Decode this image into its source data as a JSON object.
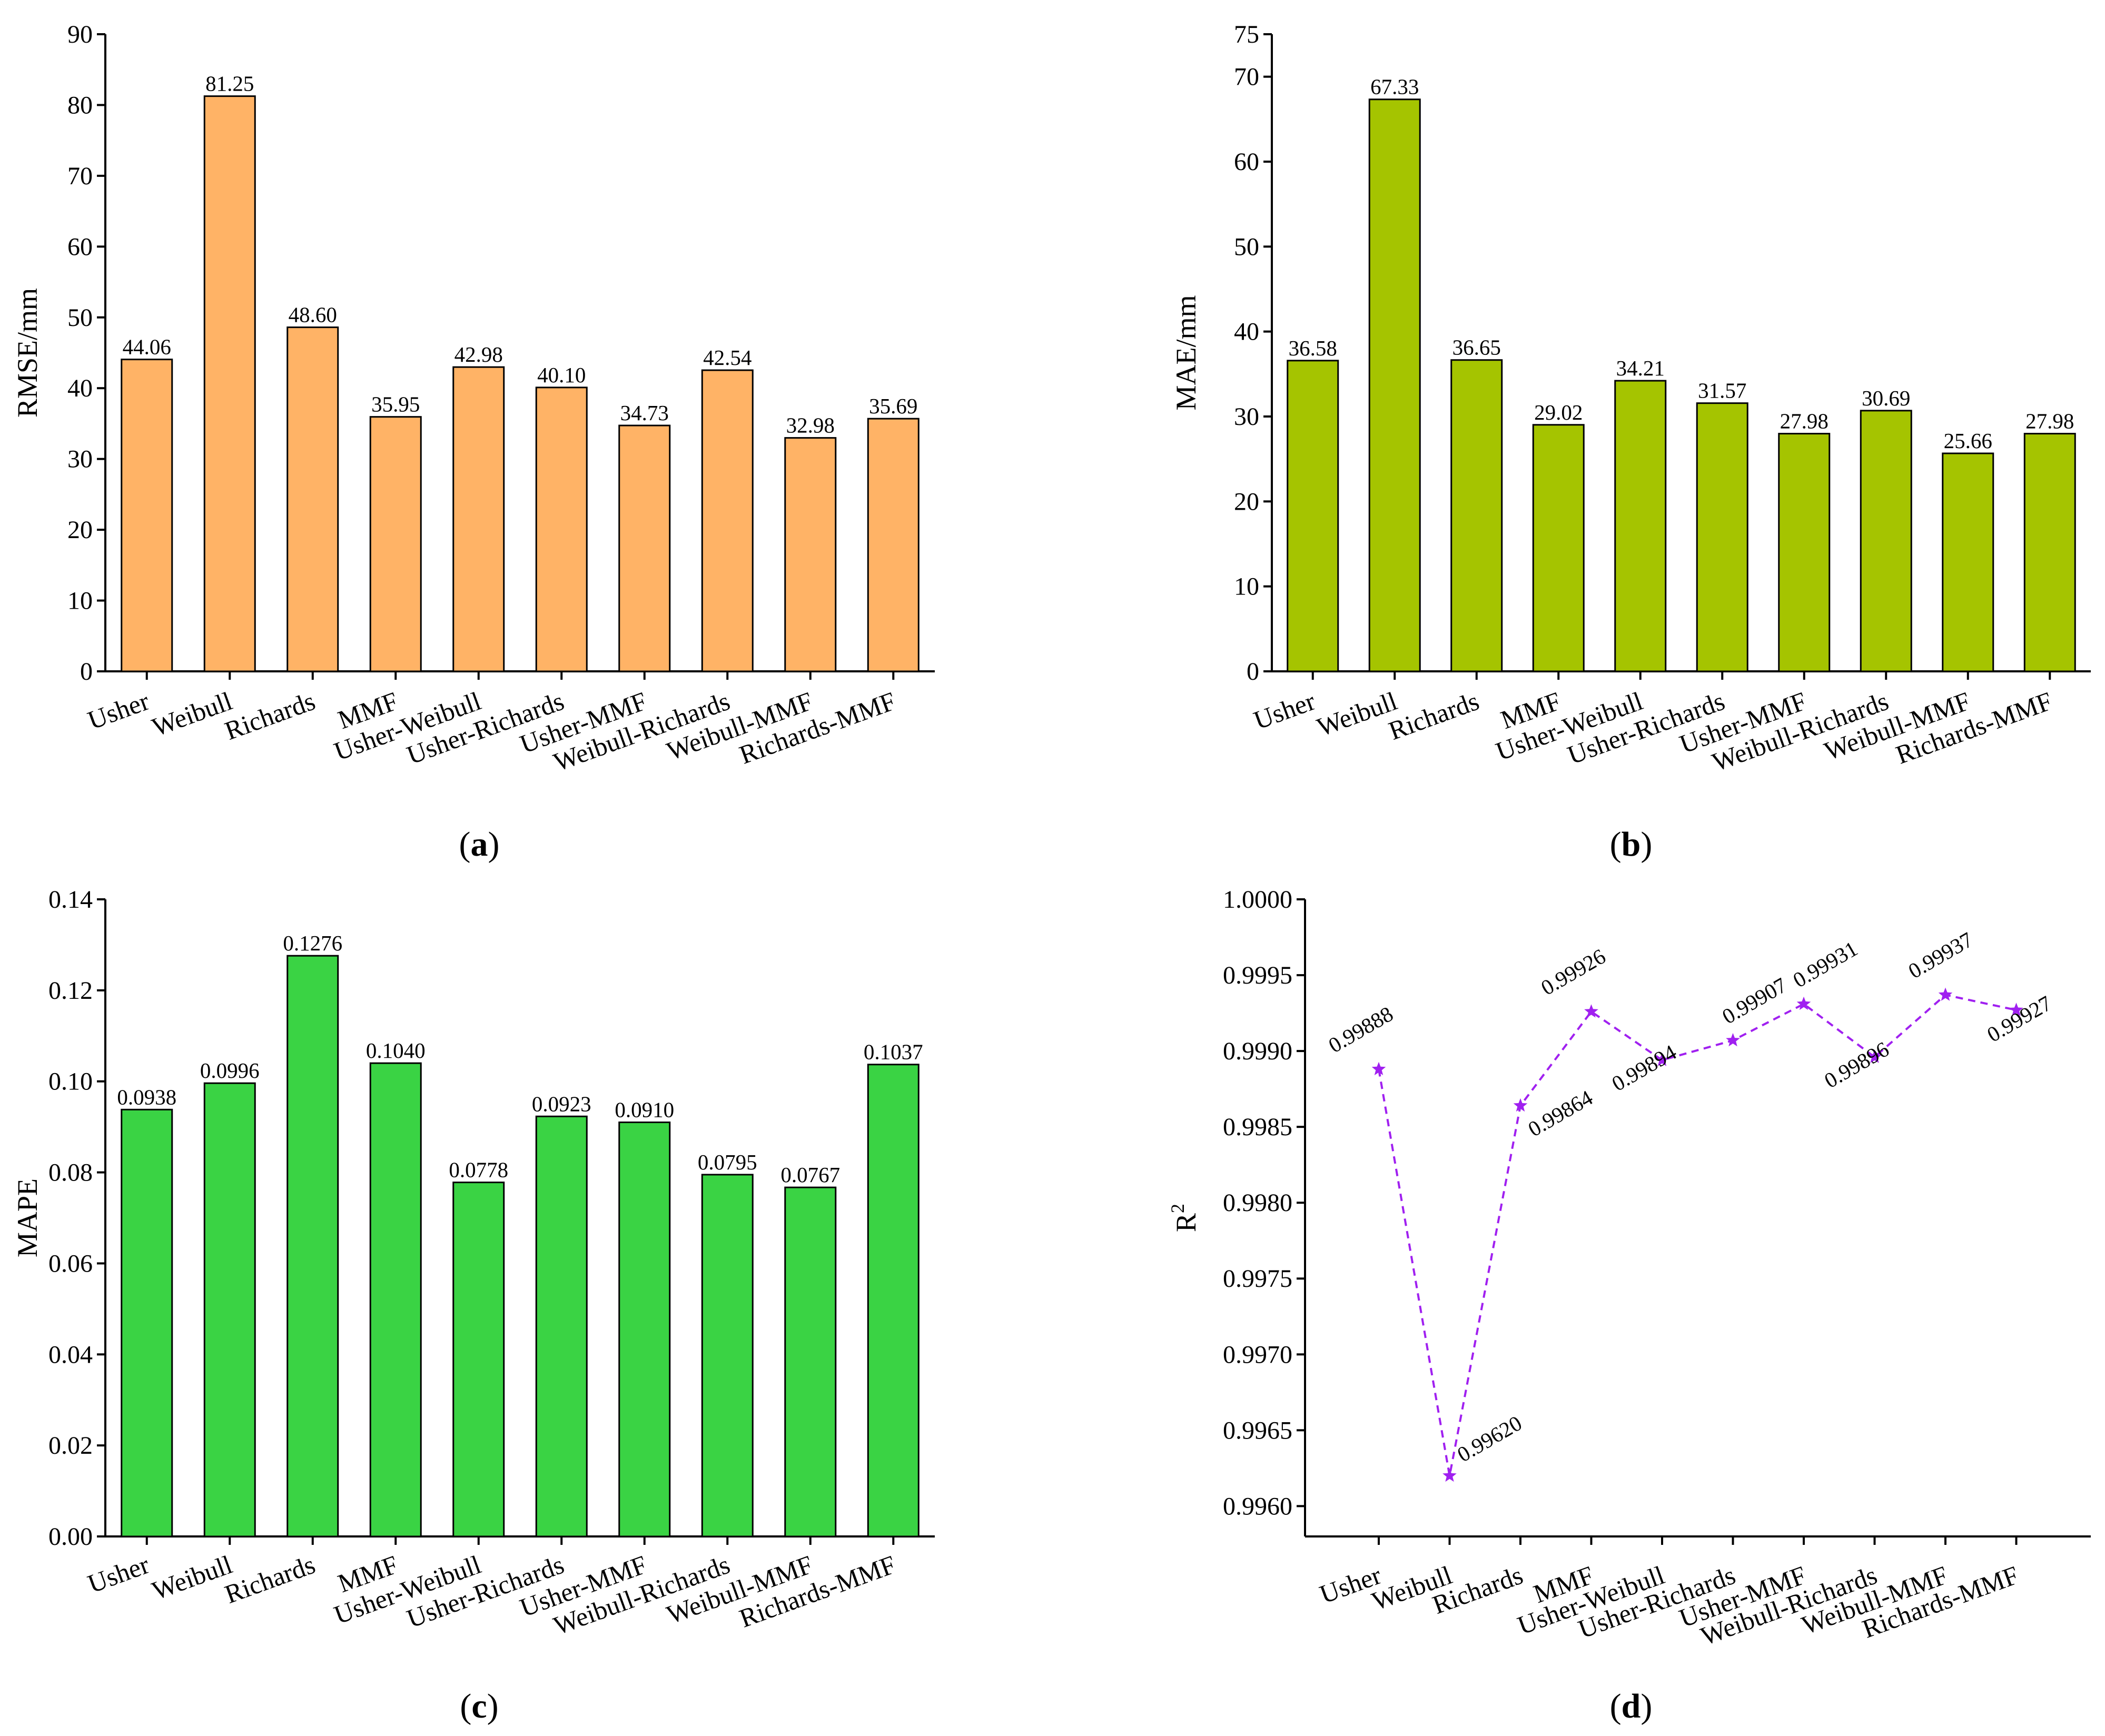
{
  "chart_data": [
    {
      "panel": "(a)",
      "panel_letter": "a",
      "type": "bar",
      "categories": [
        "Usher",
        "Weibull",
        "Richards",
        "MMF",
        "Usher-Weibull",
        "Usher-Richards",
        "Usher-MMF",
        "Weibull-Richards",
        "Weibull-MMF",
        "Richards-MMF"
      ],
      "values": [
        44.06,
        81.25,
        48.6,
        35.95,
        42.98,
        40.1,
        34.73,
        42.54,
        32.98,
        35.69
      ],
      "value_labels": [
        "44.06",
        "81.25",
        "48.60",
        "35.95",
        "42.98",
        "40.10",
        "34.73",
        "42.54",
        "32.98",
        "35.69"
      ],
      "ylabel": "RMSE/mm",
      "ylim": [
        0,
        90
      ],
      "yticks": [
        0,
        10,
        20,
        30,
        40,
        50,
        60,
        70,
        80,
        90
      ],
      "ytick_labels": [
        "0",
        "10",
        "20",
        "30",
        "40",
        "50",
        "60",
        "70",
        "80",
        "90"
      ],
      "color": "#FFB366",
      "grid": false
    },
    {
      "panel": "(b)",
      "panel_letter": "b",
      "type": "bar",
      "categories": [
        "Usher",
        "Weibull",
        "Richards",
        "MMF",
        "Usher-Weibull",
        "Usher-Richards",
        "Usher-MMF",
        "Weibull-Richards",
        "Weibull-MMF",
        "Richards-MMF"
      ],
      "values": [
        36.58,
        67.33,
        36.65,
        29.02,
        34.21,
        31.57,
        27.98,
        30.69,
        25.66,
        27.98
      ],
      "value_labels": [
        "36.58",
        "67.33",
        "36.65",
        "29.02",
        "34.21",
        "31.57",
        "27.98",
        "30.69",
        "25.66",
        "27.98"
      ],
      "ylabel": "MAE/mm",
      "ylim": [
        0,
        75
      ],
      "yticks": [
        0,
        10,
        20,
        30,
        40,
        50,
        60,
        70,
        75
      ],
      "ytick_labels": [
        "0",
        "10",
        "20",
        "30",
        "40",
        "50",
        "60",
        "70",
        "75"
      ],
      "color": "#A5C400",
      "grid": false
    },
    {
      "panel": "(c)",
      "panel_letter": "c",
      "type": "bar",
      "categories": [
        "Usher",
        "Weibull",
        "Richards",
        "MMF",
        "Usher-Weibull",
        "Usher-Richards",
        "Usher-MMF",
        "Weibull-Richards",
        "Weibull-MMF",
        "Richards-MMF"
      ],
      "values": [
        0.0938,
        0.0996,
        0.1276,
        0.104,
        0.0778,
        0.0923,
        0.091,
        0.0795,
        0.0767,
        0.1037
      ],
      "value_labels": [
        "0.0938",
        "0.0996",
        "0.1276",
        "0.1040",
        "0.0778",
        "0.0923",
        "0.0910",
        "0.0795",
        "0.0767",
        "0.1037"
      ],
      "ylabel": "MAPE",
      "ylim": [
        0,
        0.14
      ],
      "yticks": [
        0,
        0.02,
        0.04,
        0.06,
        0.08,
        0.1,
        0.12,
        0.14
      ],
      "ytick_labels": [
        "0.00",
        "0.02",
        "0.04",
        "0.06",
        "0.08",
        "0.10",
        "0.12",
        "0.14"
      ],
      "color": "#3AD344",
      "grid": false
    },
    {
      "panel": "(d)",
      "panel_letter": "d",
      "type": "line",
      "categories": [
        "Usher",
        "Weibull",
        "Richards",
        "MMF",
        "Usher-Weibull",
        "Usher-Richards",
        "Usher-MMF",
        "Weibull-Richards",
        "Weibull-MMF",
        "Richards-MMF"
      ],
      "values": [
        0.99888,
        0.9962,
        0.99864,
        0.99926,
        0.99894,
        0.99907,
        0.99931,
        0.99896,
        0.99937,
        0.99927
      ],
      "value_labels": [
        "0.99888",
        "0.99620",
        "0.99864",
        "0.99926",
        "0.99894",
        "0.99907",
        "0.99931",
        "0.99896",
        "0.99937",
        "0.99927"
      ],
      "ylabel_main": "R",
      "ylabel_sup": "2",
      "ylim": [
        0.9958,
        1.0
      ],
      "yticks": [
        0.996,
        0.9965,
        0.997,
        0.9975,
        0.998,
        0.9985,
        0.999,
        0.9995,
        1.0
      ],
      "ytick_labels": [
        "0.9960",
        "0.9965",
        "0.9970",
        "0.9975",
        "0.9980",
        "0.9985",
        "0.9990",
        "0.9995",
        "1.0000"
      ],
      "color": "#A020F0",
      "line_style": "dashed",
      "marker": "star",
      "grid": false
    }
  ]
}
